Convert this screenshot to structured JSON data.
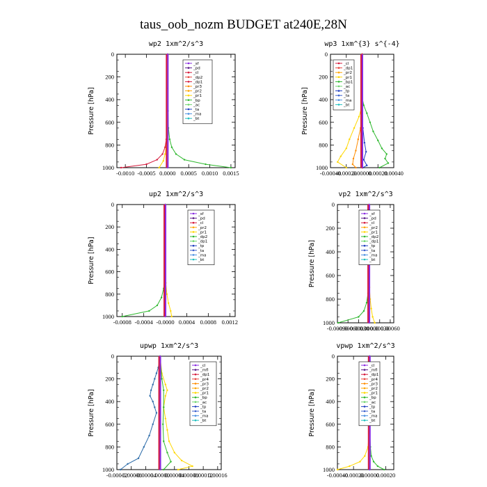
{
  "title": "taus_oob_nozm  BUDGET at240E,28N",
  "chart_data": [
    {
      "type": "line",
      "title": "wp2   1xm^2/s^3",
      "ylabel": "Pressure [hPa]",
      "ylim": [
        1000,
        0
      ],
      "yticks": [
        "0",
        "200",
        "400",
        "600",
        "800",
        "1000"
      ],
      "xlim": [
        -0.0012,
        0.0016
      ],
      "xticks": [
        -0.001,
        -0.0005,
        0.0,
        0.0005,
        0.001,
        0.0015
      ],
      "xticklabels": [
        "-0.0010",
        "-0.0005",
        "0.0000",
        "0.0005",
        "0.0010",
        "0.0015"
      ],
      "legend": [
        {
          "name": "_sf",
          "color": "#8a2be2"
        },
        {
          "name": "_pd",
          "color": "#5a1a8a"
        },
        {
          "name": "_cl",
          "color": "#d61a3c"
        },
        {
          "name": "_dp2",
          "color": "#e8453c"
        },
        {
          "name": "_dp1",
          "color": "#d61a3c"
        },
        {
          "name": "_pr3",
          "color": "#ff8c00"
        },
        {
          "name": "_pr2",
          "color": "#ffa500"
        },
        {
          "name": "_pr1",
          "color": "#ffd700"
        },
        {
          "name": "_bp",
          "color": "#2eb82e"
        },
        {
          "name": "_ac",
          "color": "#6cd46c"
        },
        {
          "name": "_ta",
          "color": "#1f3fbf"
        },
        {
          "name": "_ma",
          "color": "#4a90e2"
        },
        {
          "name": "_bt",
          "color": "#20c0c0"
        }
      ],
      "series": [
        {
          "name": "_ac",
          "color": "#2eb82e",
          "p": [
            0,
            300,
            500,
            650,
            750,
            820,
            880,
            930,
            970,
            1000
          ],
          "v": [
            0,
            0,
            1e-05,
            2e-05,
            5e-05,
            0.0001,
            0.0002,
            0.0004,
            0.0009,
            0.0015
          ]
        },
        {
          "name": "_dp1",
          "color": "#d61a3c",
          "p": [
            0,
            500,
            650,
            750,
            820,
            880,
            930,
            970,
            1000
          ],
          "v": [
            0,
            0,
            -1e-05,
            -3e-05,
            -6e-05,
            -0.00012,
            -0.00025,
            -0.0005,
            -0.0011
          ]
        },
        {
          "name": "_pr1",
          "color": "#ffd700",
          "p": [
            0,
            500,
            700,
            800,
            880,
            940,
            1000
          ],
          "v": [
            0,
            0,
            -1e-05,
            -3e-05,
            -6e-05,
            -0.0001,
            -0.0002
          ]
        },
        {
          "name": "_sf",
          "color": "#8a2be2",
          "p": [
            0,
            500,
            1000
          ],
          "v": [
            0,
            0,
            0
          ]
        }
      ]
    },
    {
      "type": "line",
      "title": "wp3   1xm^{3} s^{-4}",
      "ylabel": "Pressure [hPa]",
      "ylim": [
        1000,
        0
      ],
      "yticks": [
        "0",
        "200",
        "400",
        "600",
        "800",
        "1000"
      ],
      "xlim": [
        -0.0004,
        0.0004
      ],
      "xticks": [
        -0.0004,
        -0.0002,
        0.0,
        0.0002,
        0.0004
      ],
      "xticklabels": [
        "-0.00040",
        "-0.00020",
        "0.00000",
        "0.00020",
        "0.00040"
      ],
      "legend": [
        {
          "name": "_cl",
          "color": "#d61a3c"
        },
        {
          "name": "_dp1",
          "color": "#e8453c"
        },
        {
          "name": "_pr2",
          "color": "#ffa500"
        },
        {
          "name": "_pr1",
          "color": "#ffd700"
        },
        {
          "name": "_bp1",
          "color": "#2eb82e"
        },
        {
          "name": "_ac",
          "color": "#6cd46c"
        },
        {
          "name": "_tp",
          "color": "#1f3fbf"
        },
        {
          "name": "_ta",
          "color": "#3a5fcd"
        },
        {
          "name": "_ma",
          "color": "#4a90e2"
        },
        {
          "name": "_bt",
          "color": "#20c0c0"
        }
      ],
      "series": [
        {
          "name": "_bp1",
          "color": "#2eb82e",
          "p": [
            0,
            380,
            450,
            520,
            600,
            680,
            760,
            830,
            880,
            920,
            960,
            1000
          ],
          "v": [
            0,
            0,
            2e-05,
            6e-05,
            0.0001,
            0.00014,
            0.0002,
            0.00025,
            0.00031,
            0.00029,
            0.00033,
            0.00022
          ]
        },
        {
          "name": "_pr1",
          "color": "#ffd700",
          "p": [
            0,
            450,
            550,
            650,
            750,
            830,
            900,
            950,
            1000
          ],
          "v": [
            0,
            0,
            -4e-05,
            -0.0001,
            -0.00016,
            -0.0002,
            -0.00027,
            -0.00031,
            -0.0002
          ]
        },
        {
          "name": "_pr2",
          "color": "#ff8c00",
          "p": [
            0,
            550,
            650,
            750,
            850,
            920,
            970,
            1000
          ],
          "v": [
            0,
            0,
            -2e-05,
            -5e-05,
            -8e-05,
            -0.00011,
            -0.00012,
            -8e-05
          ]
        },
        {
          "name": "_tp",
          "color": "#1f3fbf",
          "p": [
            0,
            500,
            650,
            780,
            860,
            930,
            980,
            1000
          ],
          "v": [
            0,
            0,
            1e-05,
            3e-05,
            5e-05,
            2e-05,
            6e-05,
            1e-05
          ]
        },
        {
          "name": "_cl",
          "color": "#d61a3c",
          "p": [
            0,
            1000
          ],
          "v": [
            0,
            0
          ]
        }
      ]
    },
    {
      "type": "line",
      "title": "up2   1xm^2/s^3",
      "ylabel": "Pressure [hPa]",
      "ylim": [
        1000,
        0
      ],
      "yticks": [
        "0",
        "200",
        "400",
        "600",
        "800",
        "1000"
      ],
      "xlim": [
        -0.0009,
        0.0013
      ],
      "xticks": [
        -0.0008,
        -0.0004,
        0.0,
        0.0004,
        0.0008,
        0.0012
      ],
      "xticklabels": [
        "-0.0008",
        "-0.0004",
        "-0.0000",
        "0.0004",
        "0.0008",
        "0.0012"
      ],
      "legend": [
        {
          "name": "_sf",
          "color": "#8a2be2"
        },
        {
          "name": "_pd",
          "color": "#5a1a8a"
        },
        {
          "name": "_cl",
          "color": "#d61a3c"
        },
        {
          "name": "_pr2",
          "color": "#ffa500"
        },
        {
          "name": "_pr1",
          "color": "#ffd700"
        },
        {
          "name": "_dp2",
          "color": "#2eb82e"
        },
        {
          "name": "_dp1",
          "color": "#6cd46c"
        },
        {
          "name": "_tp",
          "color": "#1f3fbf"
        },
        {
          "name": "_ta",
          "color": "#3a5fcd"
        },
        {
          "name": "_ma",
          "color": "#4a90e2"
        },
        {
          "name": "_bt",
          "color": "#20c0c0"
        }
      ],
      "series": [
        {
          "name": "_dp2",
          "color": "#2eb82e",
          "p": [
            0,
            500,
            650,
            750,
            830,
            900,
            950,
            1000
          ],
          "v": [
            0,
            0,
            -1e-05,
            -3e-05,
            -7e-05,
            -0.00015,
            -0.0003,
            -0.0008
          ]
        },
        {
          "name": "_pr1",
          "color": "#ffd700",
          "p": [
            0,
            500,
            700,
            800,
            880,
            950,
            1000
          ],
          "v": [
            0,
            0,
            1e-05,
            3e-05,
            6e-05,
            0.0001,
            0.00012
          ]
        },
        {
          "name": "_sf",
          "color": "#8a2be2",
          "p": [
            0,
            1000
          ],
          "v": [
            0,
            0
          ]
        }
      ]
    },
    {
      "type": "line",
      "title": "vp2   1xm^2/s^3",
      "ylabel": "Pressure [hPa]",
      "ylim": [
        1000,
        0
      ],
      "yticks": [
        "0",
        "200",
        "400",
        "600",
        "800",
        "1000"
      ],
      "xlim": [
        -0.0009,
        0.0007
      ],
      "xticks": [
        -0.0009,
        -0.0006,
        -0.0003,
        0.0,
        0.0003,
        0.0006
      ],
      "xticklabels": [
        "-0.00090",
        "-0.00060",
        "-0.00030",
        "0.00000",
        "0.00030",
        "0.00060"
      ],
      "legend": [
        {
          "name": "_sf",
          "color": "#8a2be2"
        },
        {
          "name": "_pd",
          "color": "#5a1a8a"
        },
        {
          "name": "_cl",
          "color": "#d61a3c"
        },
        {
          "name": "_pr2",
          "color": "#ffa500"
        },
        {
          "name": "_pr1",
          "color": "#ffd700"
        },
        {
          "name": "_dp2",
          "color": "#2eb82e"
        },
        {
          "name": "_dp1",
          "color": "#6cd46c"
        },
        {
          "name": "_tp",
          "color": "#1f3fbf"
        },
        {
          "name": "_ta",
          "color": "#3a5fcd"
        },
        {
          "name": "_ma",
          "color": "#4a90e2"
        },
        {
          "name": "_bt",
          "color": "#20c0c0"
        }
      ],
      "series": [
        {
          "name": "_dp2",
          "color": "#2eb82e",
          "p": [
            0,
            500,
            650,
            750,
            830,
            900,
            950,
            1000
          ],
          "v": [
            0,
            0,
            -1e-05,
            -3e-05,
            -7e-05,
            -0.00015,
            -0.0003,
            -0.00088
          ]
        },
        {
          "name": "_pr1",
          "color": "#ffd700",
          "p": [
            0,
            500,
            700,
            800,
            880,
            950,
            1000
          ],
          "v": [
            0,
            0,
            1e-05,
            3e-05,
            6e-05,
            0.0001,
            0.00016
          ]
        },
        {
          "name": "_sf",
          "color": "#8a2be2",
          "p": [
            0,
            1000
          ],
          "v": [
            0,
            0
          ]
        }
      ]
    },
    {
      "type": "line",
      "title": "upwp   1xm^2/s^3",
      "ylabel": "Pressure [hPa]",
      "ylim": [
        1000,
        0
      ],
      "yticks": [
        "0",
        "200",
        "400",
        "600",
        "800",
        "1000"
      ],
      "xlim": [
        -0.00012,
        0.00017
      ],
      "xticks": [
        -0.00012,
        -8e-05,
        -4e-05,
        0.0,
        4e-05,
        8e-05,
        0.00012,
        0.00016
      ],
      "xticklabels": [
        "-0.00012",
        "-0.00008",
        "-0.00004",
        "0.00000",
        "0.00004",
        "0.00008",
        "0.00012",
        "0.00016"
      ],
      "legend": [
        {
          "name": "_cl",
          "color": "#8a2be2"
        },
        {
          "name": "_mfl",
          "color": "#5a1a8a"
        },
        {
          "name": "_dp1",
          "color": "#d61a3c"
        },
        {
          "name": "_pr4",
          "color": "#e8453c"
        },
        {
          "name": "_pr3",
          "color": "#ff8c00"
        },
        {
          "name": "_pr2",
          "color": "#ffa500"
        },
        {
          "name": "_pr1",
          "color": "#ffd700"
        },
        {
          "name": "_bp",
          "color": "#2eb82e"
        },
        {
          "name": "_ac",
          "color": "#6cd46c"
        },
        {
          "name": "_tp",
          "color": "#1f3fbf"
        },
        {
          "name": "_ta",
          "color": "#3a5fcd"
        },
        {
          "name": "_ma",
          "color": "#4a90e2"
        },
        {
          "name": "_bt",
          "color": "#20c0c0"
        }
      ],
      "series": [
        {
          "name": "_tp",
          "color": "#2a6aa8",
          "p": [
            0,
            100,
            150,
            200,
            250,
            300,
            350,
            400,
            450,
            500,
            600,
            700,
            800,
            900,
            950,
            1000
          ],
          "v": [
            0,
            -5e-06,
            -1e-05,
            -1.5e-05,
            -2e-05,
            -2.5e-05,
            -2.8e-05,
            -2e-05,
            -1.5e-05,
            -1e-05,
            -2e-05,
            -3e-05,
            -4.5e-05,
            -6e-05,
            -9e-05,
            -0.00011
          ]
        },
        {
          "name": "_pr1",
          "color": "#ffd700",
          "p": [
            0,
            150,
            250,
            300,
            350,
            450,
            550,
            650,
            750,
            850,
            920,
            970,
            1000
          ],
          "v": [
            0,
            5e-06,
            1.5e-05,
            2e-05,
            1.5e-05,
            1e-05,
            1.5e-05,
            2e-05,
            2.5e-05,
            4e-05,
            6e-05,
            9e-05,
            5e-05
          ]
        },
        {
          "name": "_bp",
          "color": "#2eb82e",
          "p": [
            0,
            200,
            300,
            450,
            600,
            750,
            850,
            930,
            1000
          ],
          "v": [
            0,
            5e-06,
            1e-05,
            1e-05,
            8e-06,
            1e-05,
            2e-05,
            3e-05,
            1e-05
          ]
        },
        {
          "name": "_cl",
          "color": "#8a2be2",
          "p": [
            0,
            1000
          ],
          "v": [
            0,
            0
          ]
        }
      ]
    },
    {
      "type": "line",
      "title": "vpwp   1xm^2/s^3",
      "ylabel": "Pressure [hPa]",
      "ylim": [
        1000,
        0
      ],
      "yticks": [
        "0",
        "200",
        "400",
        "600",
        "800",
        "1000"
      ],
      "xlim": [
        -0.0004,
        0.0003
      ],
      "xticks": [
        -0.0004,
        -0.0002,
        0.0,
        0.0002
      ],
      "xticklabels": [
        "-0.00040",
        "-0.00020",
        "0.00000",
        "0.00020"
      ],
      "legend": [
        {
          "name": "_cl",
          "color": "#8a2be2"
        },
        {
          "name": "_mfl",
          "color": "#5a1a8a"
        },
        {
          "name": "_dp1",
          "color": "#d61a3c"
        },
        {
          "name": "_pr4",
          "color": "#e8453c"
        },
        {
          "name": "_pr3",
          "color": "#ff8c00"
        },
        {
          "name": "_pr2",
          "color": "#ffa500"
        },
        {
          "name": "_pr1",
          "color": "#ffd700"
        },
        {
          "name": "_bp",
          "color": "#2eb82e"
        },
        {
          "name": "_ac",
          "color": "#6cd46c"
        },
        {
          "name": "_tp",
          "color": "#1f3fbf"
        },
        {
          "name": "_ta",
          "color": "#3a5fcd"
        },
        {
          "name": "_ma",
          "color": "#4a90e2"
        },
        {
          "name": "_bt",
          "color": "#20c0c0"
        }
      ],
      "series": [
        {
          "name": "_pr1",
          "color": "#ffd700",
          "p": [
            0,
            600,
            800,
            880,
            930,
            970,
            1000
          ],
          "v": [
            0,
            0,
            -2e-05,
            -6e-05,
            -0.00012,
            -0.00025,
            -0.0004
          ]
        },
        {
          "name": "_bp",
          "color": "#2eb82e",
          "p": [
            0,
            600,
            800,
            880,
            930,
            970,
            1000
          ],
          "v": [
            0,
            0,
            1e-05,
            2e-05,
            5e-05,
            0.0001,
            0.00018
          ]
        },
        {
          "name": "_tp",
          "color": "#3a5fcd",
          "p": [
            0,
            300,
            1000
          ],
          "v": [
            0,
            5e-06,
            0
          ]
        },
        {
          "name": "_cl",
          "color": "#8a2be2",
          "p": [
            0,
            1000
          ],
          "v": [
            0,
            0
          ]
        }
      ]
    }
  ]
}
